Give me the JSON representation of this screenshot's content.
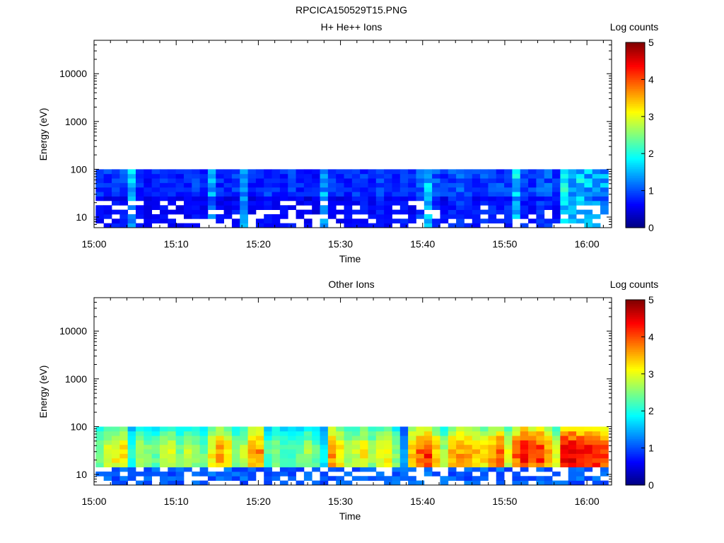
{
  "figure_title": "RPCICA150529T15.PNG",
  "chart_data": [
    {
      "type": "heatmap",
      "title": "H+ He++ Ions",
      "xlabel": "Time",
      "ylabel": "Energy (eV)",
      "yscale": "log",
      "ylim": [
        6,
        50000
      ],
      "xlim": [
        "15:00",
        "16:03"
      ],
      "x_ticks": [
        "15:00",
        "15:10",
        "15:20",
        "15:30",
        "15:40",
        "15:50",
        "16:00"
      ],
      "y_ticks": [
        "10",
        "100",
        "1000",
        "10000"
      ],
      "colorbar": {
        "label": "Log counts",
        "range": [
          0,
          5
        ],
        "ticks": [
          "0",
          "1",
          "2",
          "3",
          "4",
          "5"
        ],
        "colormap": "jet"
      },
      "energy_range_eV": [
        6,
        100
      ],
      "time_bins": 64,
      "energy_bins": 13,
      "data_note": "Counts present only below ~100 eV; mostly log counts 0.3–1.3 with intermittent green/cyan (~1.8–2.5) near 15:14, 15:18, 15:28, 15:41–15:42, 15:52, 15:58–16:01; many empty bins at lowest energies",
      "column_mean_log_counts": [
        0.8,
        0.9,
        0.9,
        1.0,
        1.7,
        0.8,
        0.7,
        0.8,
        0.9,
        0.8,
        0.7,
        0.8,
        0.9,
        0.8,
        1.5,
        0.8,
        0.8,
        0.9,
        1.6,
        0.8,
        0.8,
        0.9,
        0.8,
        0.8,
        0.9,
        0.8,
        0.8,
        0.7,
        1.6,
        0.9,
        0.8,
        0.8,
        0.9,
        0.9,
        0.8,
        1.0,
        0.8,
        0.8,
        0.9,
        0.8,
        1.2,
        1.8,
        1.1,
        0.9,
        1.0,
        1.1,
        1.0,
        0.9,
        1.0,
        1.1,
        1.0,
        1.0,
        2.0,
        1.0,
        0.9,
        1.2,
        1.1,
        0.9,
        2.0,
        1.8,
        1.9,
        1.7,
        1.6,
        1.6
      ]
    },
    {
      "type": "heatmap",
      "title": "Other Ions",
      "xlabel": "Time",
      "ylabel": "Energy (eV)",
      "yscale": "log",
      "ylim": [
        6,
        50000
      ],
      "xlim": [
        "15:00",
        "16:03"
      ],
      "x_ticks": [
        "15:00",
        "15:10",
        "15:20",
        "15:30",
        "15:40",
        "15:50",
        "16:00"
      ],
      "y_ticks": [
        "10",
        "100",
        "1000",
        "10000"
      ],
      "colorbar": {
        "label": "Log counts",
        "range": [
          0,
          5
        ],
        "ticks": [
          "0",
          "1",
          "2",
          "3",
          "4",
          "5"
        ],
        "colormap": "jet"
      },
      "energy_range_eV": [
        6,
        100
      ],
      "time_bins": 64,
      "energy_bins": 13,
      "data_note": "Counts below ~100 eV; 30–100 eV mostly log counts 2–3 (cyan–yellow), orange/red (~3.6–4.5) near 15:29, 15:41–15:43, 15:53–15:57, 15:58–16:02; blue/empty bins below ~20 eV",
      "column_peak_log_counts": [
        2.6,
        3.0,
        3.2,
        3.3,
        2.1,
        2.8,
        2.6,
        2.4,
        2.8,
        2.9,
        2.5,
        2.8,
        2.6,
        2.4,
        3.1,
        3.6,
        3.3,
        2.6,
        2.8,
        3.6,
        3.7,
        2.3,
        2.6,
        2.3,
        2.2,
        2.4,
        2.7,
        2.4,
        1.8,
        3.7,
        3.3,
        2.8,
        2.9,
        3.2,
        2.7,
        3.0,
        3.1,
        2.6,
        1.4,
        3.4,
        3.9,
        4.2,
        3.4,
        2.7,
        3.5,
        3.6,
        3.7,
        3.4,
        3.3,
        3.6,
        3.9,
        3.1,
        3.9,
        4.3,
        4.1,
        4.2,
        3.6,
        2.9,
        4.5,
        4.5,
        4.3,
        4.4,
        4.4,
        4.2
      ]
    }
  ]
}
